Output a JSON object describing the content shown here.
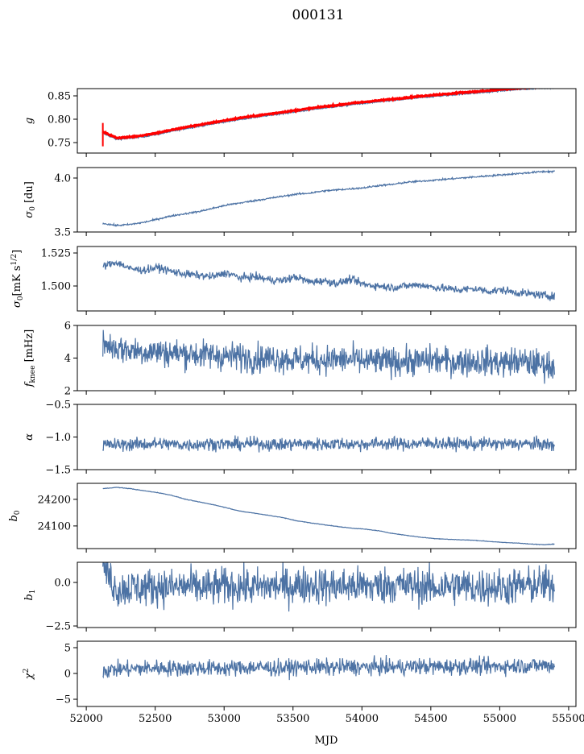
{
  "chart_data": {
    "type": "line",
    "title": "000131",
    "xlabel": "MJD",
    "xlim": [
      51935,
      55553
    ],
    "xticks": [
      52000,
      52500,
      53000,
      53500,
      54000,
      54500,
      55000,
      55500
    ],
    "xtick_labels": [
      "52000",
      "52500",
      "53000",
      "53500",
      "54000",
      "54500",
      "55000",
      "55500"
    ],
    "x": [
      52120,
      52220,
      52320,
      52420,
      52520,
      52620,
      52720,
      52820,
      52920,
      53020,
      53120,
      53220,
      53320,
      53420,
      53520,
      53620,
      53720,
      53820,
      53920,
      54020,
      54120,
      54220,
      54320,
      54420,
      54520,
      54620,
      54720,
      54820,
      54920,
      55020,
      55120,
      55220,
      55320,
      55400
    ],
    "colors": {
      "series": "#4c72a4",
      "model": "#ff0000"
    },
    "panels": [
      {
        "ylabel": [
          {
            "t": "g",
            "i": true
          }
        ],
        "ylim": [
          0.7276,
          0.8655
        ],
        "yticks": [
          0.75,
          0.8,
          0.85
        ],
        "ytick_labels": [
          "0.75",
          "0.80",
          "0.85"
        ],
        "series": [
          {
            "name": "g",
            "noise": 0.0008,
            "values": [
              0.77,
              0.757,
              0.759,
              0.763,
              0.768,
              0.774,
              0.78,
              0.785,
              0.79,
              0.795,
              0.8,
              0.804,
              0.808,
              0.812,
              0.816,
              0.82,
              0.824,
              0.827,
              0.831,
              0.834,
              0.837,
              0.84,
              0.843,
              0.846,
              0.849,
              0.851,
              0.854,
              0.856,
              0.858,
              0.861,
              0.863,
              0.865,
              0.867,
              0.868
            ]
          },
          {
            "name": "g model",
            "color": "model",
            "noise": 0.0006,
            "width": 3,
            "values": [
              0.773,
              0.76,
              0.762,
              0.766,
              0.771,
              0.777,
              0.783,
              0.788,
              0.793,
              0.798,
              0.803,
              0.807,
              0.811,
              0.815,
              0.819,
              0.823,
              0.827,
              0.83,
              0.834,
              0.837,
              0.84,
              0.843,
              0.846,
              0.849,
              0.852,
              0.854,
              0.857,
              0.859,
              0.861,
              0.864,
              0.866,
              0.868,
              0.87,
              null
            ]
          }
        ]
      },
      {
        "ylabel": [
          {
            "t": "σ",
            "i": true
          },
          {
            "t": "0",
            "sub": true
          },
          {
            "t": " [du]"
          }
        ],
        "ylim": [
          3.5,
          4.097
        ],
        "yticks": [
          3.5,
          4.0
        ],
        "ytick_labels": [
          "3.5",
          "4.0"
        ],
        "series": [
          {
            "name": "sigma0 du",
            "noise": 0.004,
            "values": [
              3.58,
              3.56,
              3.57,
              3.59,
              3.62,
              3.65,
              3.67,
              3.69,
              3.72,
              3.75,
              3.77,
              3.79,
              3.81,
              3.83,
              3.85,
              3.86,
              3.88,
              3.89,
              3.9,
              3.91,
              3.93,
              3.94,
              3.96,
              3.97,
              3.98,
              3.99,
              4.0,
              4.01,
              4.02,
              4.03,
              4.04,
              4.05,
              4.06,
              4.06
            ]
          }
        ]
      },
      {
        "ylabel": [
          {
            "t": "σ",
            "i": true
          },
          {
            "t": "0",
            "sub": true
          },
          {
            "t": "[mK s"
          },
          {
            "t": "1/2",
            "sup": true
          },
          {
            "t": "]"
          }
        ],
        "ylim": [
          1.4811,
          1.5299
        ],
        "yticks": [
          1.5,
          1.525
        ],
        "ytick_labels": [
          "1.500",
          "1.525"
        ],
        "series": [
          {
            "name": "sigma0 mK",
            "noise": 0.0015,
            "values": [
              1.515,
              1.518,
              1.513,
              1.512,
              1.514,
              1.511,
              1.509,
              1.508,
              1.507,
              1.51,
              1.506,
              1.507,
              1.505,
              1.504,
              1.507,
              1.503,
              1.504,
              1.502,
              1.505,
              1.501,
              1.5,
              1.499,
              1.5,
              1.501,
              1.499,
              1.498,
              1.497,
              1.498,
              1.496,
              1.497,
              1.495,
              1.494,
              1.493,
              1.492
            ]
          }
        ]
      },
      {
        "ylabel": [
          {
            "t": "f",
            "i": true
          },
          {
            "t": "knee",
            "sub": true
          },
          {
            "t": " [mHz]"
          }
        ],
        "ylim": [
          2,
          6
        ],
        "yticks": [
          2,
          4,
          6
        ],
        "ytick_labels": [
          "2",
          "4",
          "6"
        ],
        "series": [
          {
            "name": "fknee",
            "noise": 0.45,
            "values": [
              4.9,
              4.6,
              4.5,
              4.4,
              4.4,
              4.3,
              4.3,
              4.2,
              4.2,
              4.1,
              4.1,
              4.0,
              4.0,
              4.0,
              3.9,
              3.9,
              3.9,
              3.9,
              3.9,
              3.8,
              3.8,
              3.8,
              3.8,
              3.8,
              3.9,
              3.8,
              3.8,
              3.8,
              3.8,
              3.7,
              3.8,
              3.7,
              3.6,
              3.5
            ]
          }
        ]
      },
      {
        "ylabel": [
          {
            "t": "α",
            "i": true
          }
        ],
        "ylim": [
          -1.5,
          -0.5
        ],
        "yticks": [
          -1.5,
          -1.0,
          -0.5
        ],
        "ytick_labels": [
          "−1.5",
          "−1.0",
          "−0.5"
        ],
        "series": [
          {
            "name": "alpha",
            "noise": 0.05,
            "values": [
              -1.12,
              -1.12,
              -1.11,
              -1.11,
              -1.1,
              -1.11,
              -1.12,
              -1.11,
              -1.1,
              -1.11,
              -1.11,
              -1.1,
              -1.11,
              -1.12,
              -1.1,
              -1.11,
              -1.11,
              -1.1,
              -1.11,
              -1.11,
              -1.1,
              -1.1,
              -1.11,
              -1.1,
              -1.09,
              -1.11,
              -1.1,
              -1.11,
              -1.1,
              -1.11,
              -1.1,
              -1.11,
              -1.11,
              -1.13
            ]
          }
        ]
      },
      {
        "ylabel": [
          {
            "t": "b",
            "i": true
          },
          {
            "t": "0",
            "sub": true
          }
        ],
        "ylim": [
          24015,
          24260
        ],
        "yticks": [
          24100,
          24200
        ],
        "ytick_labels": [
          "24100",
          "24200"
        ],
        "series": [
          {
            "name": "b0",
            "noise": 0.5,
            "values": [
              24240,
              24245,
              24240,
              24232,
              24225,
              24215,
              24200,
              24190,
              24180,
              24168,
              24155,
              24148,
              24140,
              24132,
              24120,
              24112,
              24105,
              24098,
              24092,
              24088,
              24082,
              24072,
              24065,
              24058,
              24053,
              24050,
              24048,
              24046,
              24042,
              24038,
              24036,
              24032,
              24030,
              24032
            ]
          }
        ]
      },
      {
        "ylabel": [
          {
            "t": "b",
            "i": true
          },
          {
            "t": "1",
            "sub": true
          }
        ],
        "ylim": [
          -2.59,
          1.16
        ],
        "yticks": [
          -2.5,
          0.0
        ],
        "ytick_labels": [
          "−2.5",
          "0.0"
        ],
        "series": [
          {
            "name": "b1",
            "noise": 0.55,
            "values": [
              1.0,
              -0.4,
              -0.3,
              -0.3,
              -0.2,
              -0.3,
              -0.2,
              -0.3,
              -0.3,
              -0.2,
              -0.2,
              -0.3,
              -0.2,
              -0.2,
              -0.2,
              -0.1,
              -0.2,
              -0.2,
              -0.2,
              -0.2,
              -0.2,
              -0.1,
              -0.2,
              -0.2,
              -0.3,
              -0.2,
              -0.2,
              -0.3,
              -0.2,
              -0.3,
              -0.2,
              -0.2,
              -0.1,
              -0.2
            ]
          }
        ]
      },
      {
        "ylabel": [
          {
            "t": "χ",
            "i": true
          },
          {
            "t": "2",
            "sup": true
          }
        ],
        "ylim": [
          -6.4,
          6.25
        ],
        "yticks": [
          -5,
          0,
          5
        ],
        "ytick_labels": [
          "−5",
          "0",
          "5"
        ],
        "series": [
          {
            "name": "chi2",
            "noise": 0.8,
            "values": [
              0.6,
              0.8,
              0.9,
              1.0,
              1.1,
              1.0,
              1.0,
              1.1,
              1.0,
              1.0,
              1.1,
              1.2,
              1.1,
              1.0,
              1.2,
              1.3,
              1.1,
              1.2,
              1.3,
              1.2,
              1.3,
              1.2,
              1.3,
              1.4,
              1.3,
              1.3,
              1.4,
              1.4,
              1.3,
              1.4,
              1.5,
              1.5,
              1.6,
              1.6
            ]
          }
        ]
      }
    ]
  }
}
